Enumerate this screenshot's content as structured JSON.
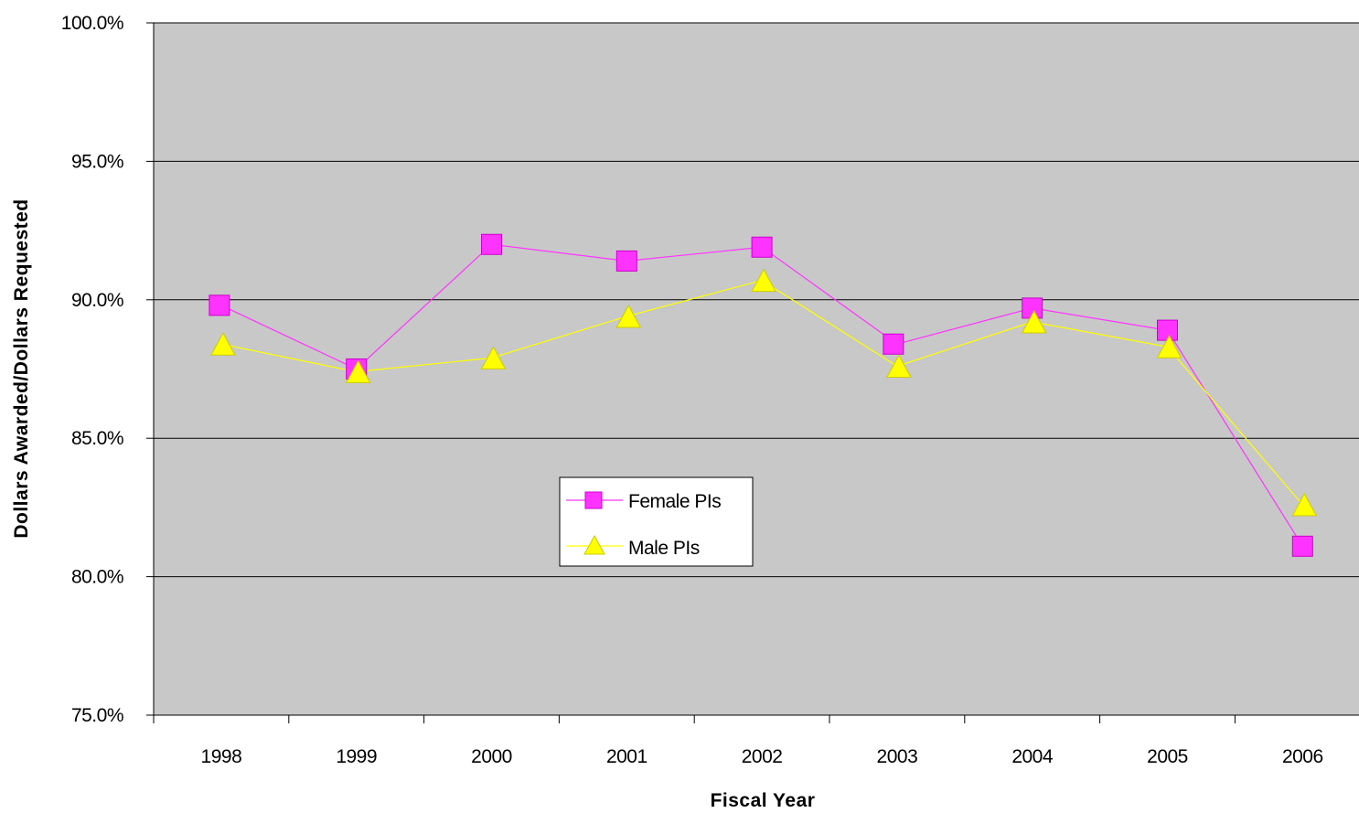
{
  "chart_data": {
    "type": "line",
    "title": "",
    "xlabel": "Fiscal Year",
    "ylabel": "Dollars Awarded/Dollars Requested",
    "categories": [
      "1998",
      "1999",
      "2000",
      "2001",
      "2002",
      "2003",
      "2004",
      "2005",
      "2006"
    ],
    "ylim": [
      75.0,
      100.0
    ],
    "yticks": [
      75.0,
      80.0,
      85.0,
      90.0,
      95.0,
      100.0
    ],
    "ytick_labels": [
      "75.0%",
      "80.0%",
      "85.0%",
      "90.0%",
      "95.0%",
      "100.0%"
    ],
    "grid": true,
    "plot_background": "#c8c8c8",
    "legend_position": "center",
    "series": [
      {
        "name": "Female PIs",
        "marker": "square",
        "color": "#ff33ff",
        "values": [
          89.8,
          87.5,
          92.0,
          91.4,
          91.9,
          88.4,
          89.7,
          88.9,
          81.1
        ]
      },
      {
        "name": "Male PIs",
        "marker": "triangle",
        "color": "#ffff00",
        "values": [
          88.4,
          87.4,
          87.9,
          89.4,
          90.7,
          87.6,
          89.2,
          88.3,
          82.6
        ]
      }
    ]
  }
}
